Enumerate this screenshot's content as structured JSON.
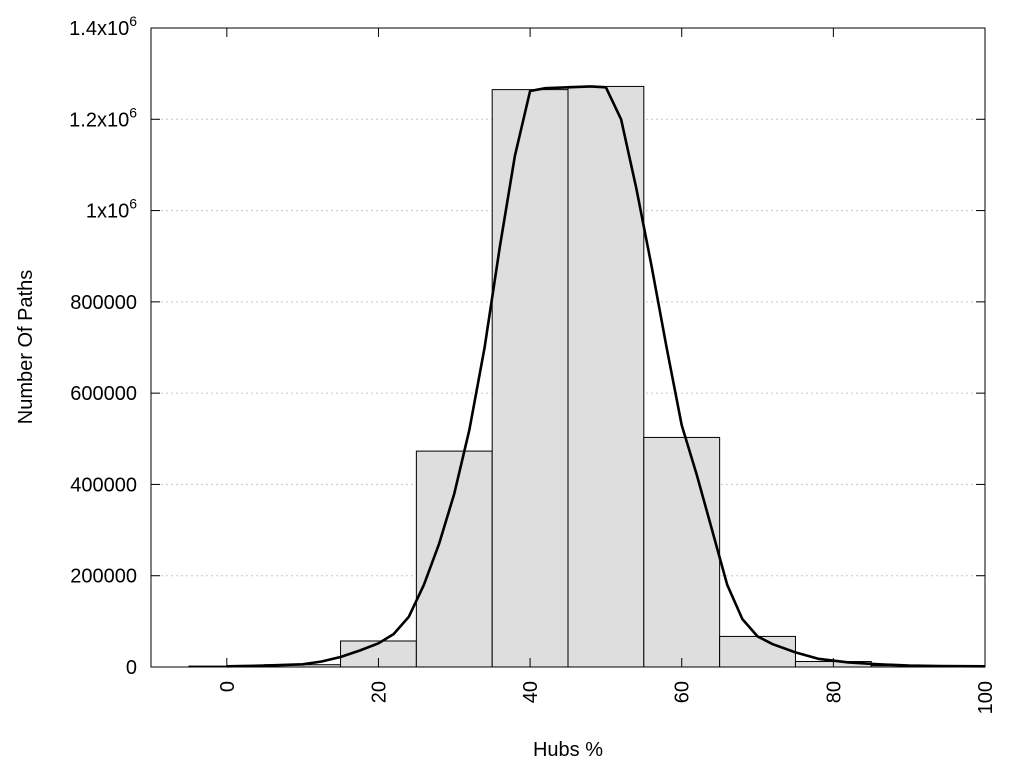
{
  "chart_data": {
    "type": "bar",
    "title": "",
    "xlabel": "Hubs %",
    "ylabel": "Number Of Paths",
    "xlim": [
      -10,
      100
    ],
    "ylim": [
      0,
      1400000
    ],
    "grid": true,
    "x_ticks": [
      {
        "value": 0,
        "label": "0"
      },
      {
        "value": 20,
        "label": "20"
      },
      {
        "value": 40,
        "label": "40"
      },
      {
        "value": 60,
        "label": "60"
      },
      {
        "value": 80,
        "label": "80"
      },
      {
        "value": 100,
        "label": "100"
      }
    ],
    "y_ticks": [
      {
        "value": 0,
        "label": "0"
      },
      {
        "value": 200000,
        "label": "200000"
      },
      {
        "value": 400000,
        "label": "400000"
      },
      {
        "value": 600000,
        "label": "600000"
      },
      {
        "value": 800000,
        "label": "800000"
      },
      {
        "value": 1000000,
        "label": "1x10",
        "sup": "6"
      },
      {
        "value": 1200000,
        "label": "1.2x10",
        "sup": "6"
      },
      {
        "value": 1400000,
        "label": "1.4x10",
        "sup": "6"
      }
    ],
    "bin_width": 10,
    "bars": [
      {
        "x": 0,
        "value": 2000
      },
      {
        "x": 10,
        "value": 5000
      },
      {
        "x": 20,
        "value": 57000
      },
      {
        "x": 30,
        "value": 473000
      },
      {
        "x": 40,
        "value": 1265000
      },
      {
        "x": 50,
        "value": 1272000
      },
      {
        "x": 60,
        "value": 503000
      },
      {
        "x": 70,
        "value": 67000
      },
      {
        "x": 80,
        "value": 12000
      },
      {
        "x": 90,
        "value": 3000
      },
      {
        "x": 100,
        "value": 1000
      }
    ],
    "curve": [
      [
        0,
        1500
      ],
      [
        5,
        3000
      ],
      [
        10,
        6000
      ],
      [
        12.5,
        12000
      ],
      [
        15,
        22000
      ],
      [
        17.5,
        36000
      ],
      [
        20,
        52000
      ],
      [
        22,
        72000
      ],
      [
        24,
        110000
      ],
      [
        26,
        180000
      ],
      [
        28,
        270000
      ],
      [
        30,
        380000
      ],
      [
        32,
        520000
      ],
      [
        34,
        700000
      ],
      [
        36,
        920000
      ],
      [
        38,
        1120000
      ],
      [
        40,
        1262000
      ],
      [
        42,
        1268000
      ],
      [
        45,
        1270000
      ],
      [
        48,
        1272000
      ],
      [
        50,
        1270000
      ],
      [
        52,
        1200000
      ],
      [
        54,
        1050000
      ],
      [
        56,
        880000
      ],
      [
        58,
        700000
      ],
      [
        60,
        530000
      ],
      [
        62,
        420000
      ],
      [
        64,
        300000
      ],
      [
        66,
        180000
      ],
      [
        68,
        105000
      ],
      [
        70,
        67000
      ],
      [
        72,
        50000
      ],
      [
        75,
        32000
      ],
      [
        78,
        18000
      ],
      [
        82,
        10000
      ],
      [
        86,
        6000
      ],
      [
        90,
        3000
      ],
      [
        94,
        2000
      ],
      [
        100,
        1500
      ]
    ]
  }
}
